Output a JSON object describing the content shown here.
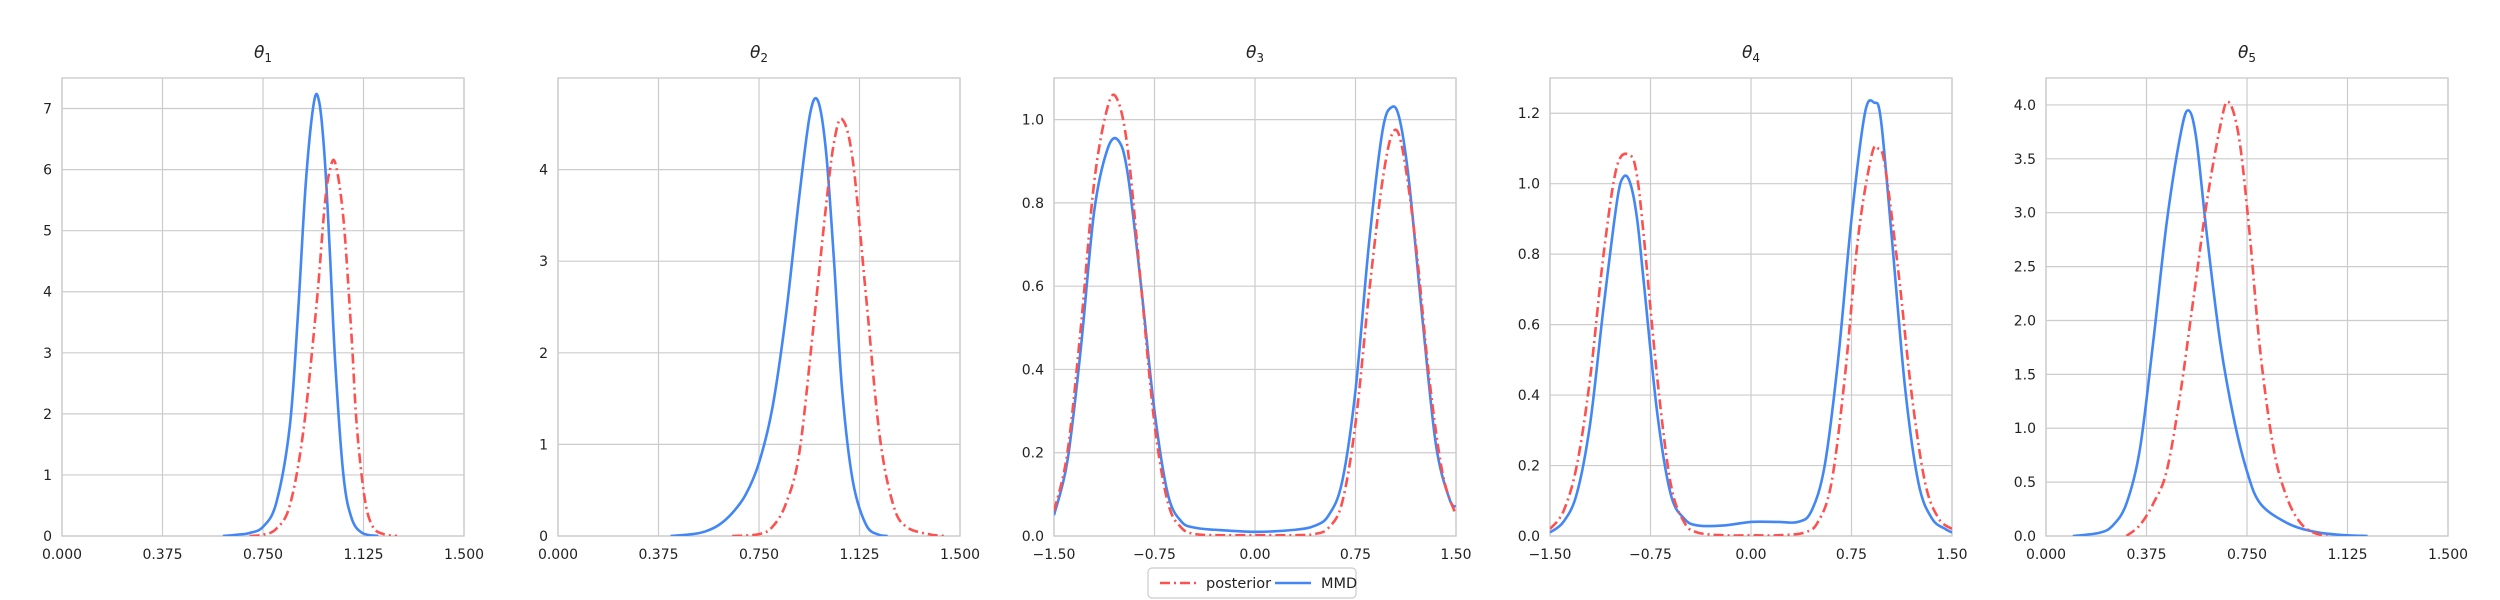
{
  "chart_data": {
    "type": "line",
    "legend": {
      "placement": "bottom-center",
      "entries": [
        {
          "series": "posterior",
          "label": "posterior",
          "color": "#ff5050",
          "style": "dashdot"
        },
        {
          "series": "MMD",
          "label": "MMD",
          "color": "#4287f5",
          "style": "solid"
        }
      ]
    },
    "grid": true,
    "panels": [
      {
        "title": "θ1",
        "title_base": "θ",
        "title_sub": "1",
        "xlim": [
          0.0,
          1.5
        ],
        "ylim": [
          0,
          7.5
        ],
        "xticks": [
          "0.000",
          "0.375",
          "0.750",
          "1.125",
          "1.500"
        ],
        "yticks": [
          "0",
          "1",
          "2",
          "3",
          "4",
          "5",
          "6",
          "7"
        ],
        "series": [
          {
            "name": "posterior",
            "x": [
              0.7,
              0.75,
              0.8,
              0.85,
              0.9,
              0.95,
              0.98,
              1.0,
              1.02,
              1.05,
              1.08,
              1.1,
              1.13,
              1.16,
              1.2,
              1.25
            ],
            "y": [
              0.0,
              0.02,
              0.12,
              0.5,
              1.7,
              3.8,
              5.4,
              6.0,
              6.1,
              5.2,
              3.3,
              1.8,
              0.6,
              0.15,
              0.03,
              0.0
            ]
          },
          {
            "name": "MMD",
            "x": [
              0.6,
              0.65,
              0.7,
              0.75,
              0.8,
              0.85,
              0.88,
              0.91,
              0.94,
              0.96,
              0.98,
              1.0,
              1.02,
              1.05,
              1.08,
              1.12,
              1.18
            ],
            "y": [
              0.0,
              0.02,
              0.05,
              0.15,
              0.55,
              1.8,
              3.6,
              5.8,
              7.1,
              7.1,
              6.2,
              4.6,
              2.8,
              1.0,
              0.3,
              0.05,
              0.0
            ]
          }
        ]
      },
      {
        "title": "θ2",
        "title_base": "θ",
        "title_sub": "2",
        "xlim": [
          0.0,
          1.5
        ],
        "ylim": [
          0,
          5.0
        ],
        "xticks": [
          "0.000",
          "0.375",
          "0.750",
          "1.125",
          "1.500"
        ],
        "yticks": [
          "0",
          "1",
          "2",
          "3",
          "4"
        ],
        "series": [
          {
            "name": "posterior",
            "x": [
              0.65,
              0.75,
              0.8,
              0.85,
              0.9,
              0.95,
              1.0,
              1.03,
              1.06,
              1.1,
              1.15,
              1.2,
              1.25,
              1.3,
              1.4,
              1.45
            ],
            "y": [
              0.0,
              0.02,
              0.1,
              0.35,
              0.9,
              2.2,
              3.6,
              4.3,
              4.55,
              4.1,
              2.6,
              1.1,
              0.35,
              0.1,
              0.01,
              0.0
            ]
          },
          {
            "name": "MMD",
            "x": [
              0.42,
              0.5,
              0.55,
              0.6,
              0.65,
              0.7,
              0.75,
              0.8,
              0.85,
              0.9,
              0.94,
              0.97,
              1.0,
              1.03,
              1.06,
              1.1,
              1.15,
              1.2,
              1.23
            ],
            "y": [
              0.0,
              0.02,
              0.05,
              0.12,
              0.25,
              0.45,
              0.8,
              1.4,
              2.4,
              3.7,
              4.6,
              4.75,
              4.2,
              3.0,
              1.6,
              0.6,
              0.12,
              0.01,
              0.0
            ]
          }
        ]
      },
      {
        "title": "θ3",
        "title_base": "θ",
        "title_sub": "3",
        "xlim": [
          -1.5,
          1.5
        ],
        "ylim": [
          0,
          1.1
        ],
        "xticks": [
          "−1.50",
          "−0.75",
          "0.00",
          "0.75",
          "1.50"
        ],
        "yticks": [
          "0.0",
          "0.2",
          "0.4",
          "0.6",
          "0.8",
          "1.0"
        ],
        "series": [
          {
            "name": "posterior",
            "x": [
              -1.5,
              -1.4,
              -1.3,
              -1.2,
              -1.1,
              -1.03,
              -0.95,
              -0.85,
              -0.75,
              -0.65,
              -0.55,
              -0.45,
              -0.3,
              0.0,
              0.3,
              0.45,
              0.55,
              0.65,
              0.75,
              0.85,
              0.95,
              1.03,
              1.1,
              1.2,
              1.3,
              1.4,
              1.5
            ],
            "y": [
              0.06,
              0.2,
              0.5,
              0.85,
              1.03,
              1.05,
              0.93,
              0.6,
              0.27,
              0.08,
              0.02,
              0.005,
              0.002,
              0.002,
              0.002,
              0.005,
              0.02,
              0.08,
              0.27,
              0.58,
              0.85,
              0.97,
              0.93,
              0.7,
              0.38,
              0.15,
              0.05
            ]
          },
          {
            "name": "MMD",
            "x": [
              -1.5,
              -1.4,
              -1.3,
              -1.2,
              -1.1,
              -1.02,
              -0.95,
              -0.85,
              -0.75,
              -0.65,
              -0.55,
              -0.45,
              -0.3,
              0.0,
              0.3,
              0.45,
              0.55,
              0.65,
              0.75,
              0.85,
              0.95,
              1.02,
              1.08,
              1.15,
              1.25,
              1.35,
              1.45,
              1.5
            ],
            "y": [
              0.05,
              0.18,
              0.45,
              0.78,
              0.93,
              0.95,
              0.87,
              0.6,
              0.3,
              0.1,
              0.035,
              0.02,
              0.015,
              0.01,
              0.015,
              0.025,
              0.05,
              0.13,
              0.35,
              0.7,
              0.97,
              1.03,
              1.0,
              0.85,
              0.52,
              0.22,
              0.09,
              0.07
            ]
          }
        ]
      },
      {
        "title": "θ4",
        "title_base": "θ",
        "title_sub": "4",
        "xlim": [
          -1.5,
          1.5
        ],
        "ylim": [
          0,
          1.3
        ],
        "xticks": [
          "−1.50",
          "−0.75",
          "0.00",
          "0.75",
          "1.50"
        ],
        "yticks": [
          "0.0",
          "0.2",
          "0.4",
          "0.6",
          "0.8",
          "1.0",
          "1.2"
        ],
        "series": [
          {
            "name": "posterior",
            "x": [
              -1.5,
              -1.4,
              -1.3,
              -1.2,
              -1.1,
              -1.0,
              -0.9,
              -0.85,
              -0.8,
              -0.7,
              -0.6,
              -0.5,
              -0.4,
              -0.2,
              0.0,
              0.2,
              0.4,
              0.5,
              0.6,
              0.7,
              0.8,
              0.9,
              0.95,
              1.0,
              1.1,
              1.2,
              1.3,
              1.4,
              1.5
            ],
            "y": [
              0.02,
              0.07,
              0.2,
              0.45,
              0.8,
              1.05,
              1.08,
              1.02,
              0.85,
              0.45,
              0.15,
              0.04,
              0.01,
              0.002,
              0.002,
              0.002,
              0.01,
              0.04,
              0.15,
              0.45,
              0.85,
              1.08,
              1.1,
              1.05,
              0.75,
              0.4,
              0.15,
              0.05,
              0.02
            ]
          },
          {
            "name": "MMD",
            "x": [
              -1.5,
              -1.4,
              -1.3,
              -1.2,
              -1.1,
              -1.0,
              -0.95,
              -0.9,
              -0.85,
              -0.8,
              -0.7,
              -0.6,
              -0.5,
              -0.4,
              -0.2,
              0.0,
              0.2,
              0.35,
              0.45,
              0.55,
              0.65,
              0.75,
              0.85,
              0.92,
              0.97,
              1.05,
              1.15,
              1.25,
              1.35,
              1.45,
              1.5
            ],
            "y": [
              0.01,
              0.04,
              0.12,
              0.32,
              0.65,
              0.95,
              1.02,
              1.0,
              0.9,
              0.72,
              0.35,
              0.12,
              0.05,
              0.03,
              0.03,
              0.04,
              0.04,
              0.04,
              0.07,
              0.2,
              0.5,
              0.9,
              1.2,
              1.23,
              1.18,
              0.85,
              0.42,
              0.15,
              0.05,
              0.02,
              0.01
            ]
          }
        ]
      },
      {
        "title": "θ5",
        "title_base": "θ",
        "title_sub": "5",
        "xlim": [
          0.0,
          1.5
        ],
        "ylim": [
          0,
          4.25
        ],
        "xticks": [
          "0.000",
          "0.375",
          "0.750",
          "1.125",
          "1.500"
        ],
        "yticks": [
          "0.0",
          "0.5",
          "1.0",
          "1.5",
          "2.0",
          "2.5",
          "3.0",
          "3.5",
          "4.0"
        ],
        "series": [
          {
            "name": "posterior",
            "x": [
              0.3,
              0.35,
              0.4,
              0.45,
              0.5,
              0.55,
              0.6,
              0.65,
              0.68,
              0.72,
              0.76,
              0.8,
              0.85,
              0.9,
              0.95,
              1.0,
              1.05
            ],
            "y": [
              0.0,
              0.1,
              0.3,
              0.6,
              1.3,
              2.2,
              3.1,
              3.8,
              4.03,
              3.7,
              2.8,
              1.7,
              0.8,
              0.35,
              0.12,
              0.03,
              0.0
            ]
          },
          {
            "name": "MMD",
            "x": [
              0.1,
              0.2,
              0.25,
              0.3,
              0.35,
              0.4,
              0.45,
              0.5,
              0.53,
              0.56,
              0.6,
              0.65,
              0.7,
              0.75,
              0.8,
              0.9,
              1.0,
              1.1,
              1.2
            ],
            "y": [
              0.0,
              0.03,
              0.1,
              0.3,
              0.8,
              1.8,
              2.9,
              3.7,
              3.95,
              3.7,
              2.8,
              1.8,
              1.1,
              0.6,
              0.3,
              0.12,
              0.04,
              0.01,
              0.0
            ]
          }
        ]
      }
    ]
  }
}
